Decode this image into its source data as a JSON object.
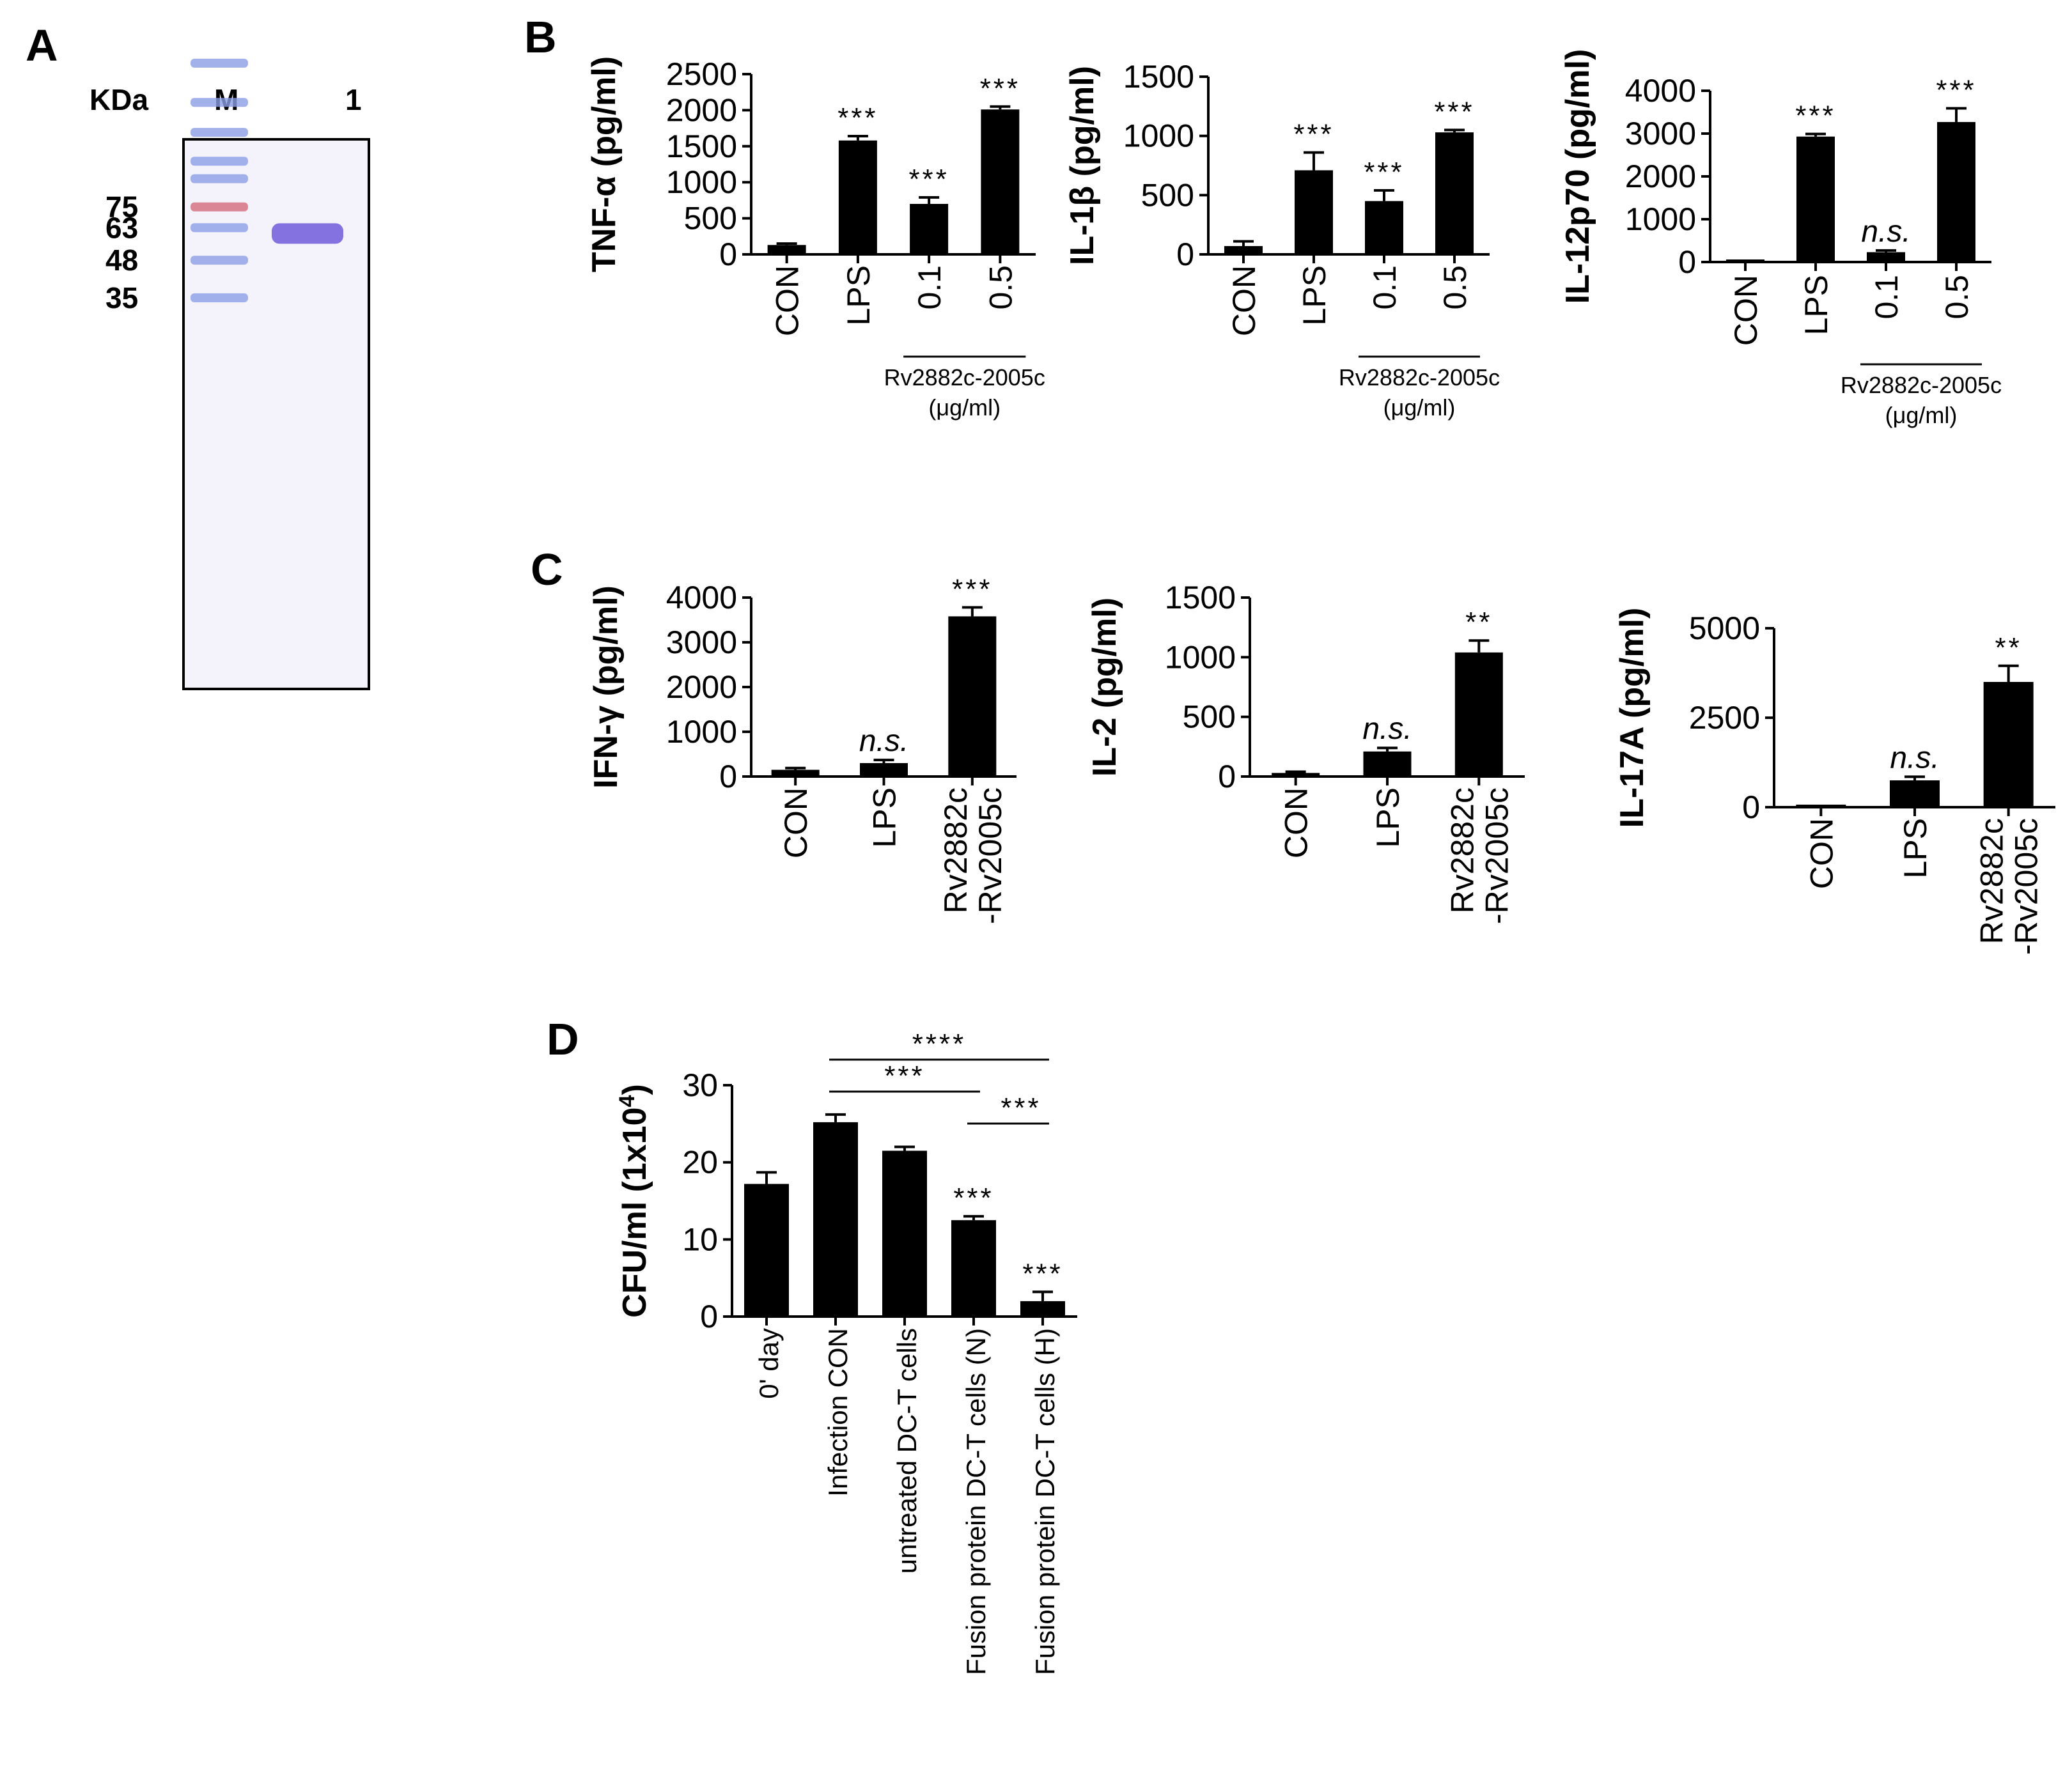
{
  "colors": {
    "bar": "#000000",
    "gel_background": "#f4f3fb",
    "gel_border": "#000000",
    "ladder_band": "#8c9ee6",
    "ladder_band_red": "#d46a7a",
    "protein_band": "#6e5ad9"
  },
  "panel_a": {
    "letter": "A",
    "kda_label": "KDa",
    "lane_m": "M",
    "lane_1": "1",
    "markers": [
      {
        "label": "75",
        "kda": 75
      },
      {
        "label": "63",
        "kda": 63
      },
      {
        "label": "48",
        "kda": 48
      },
      {
        "label": "35",
        "kda": 35
      }
    ],
    "protein_band_kda": 60
  },
  "panel_b": {
    "letter": "B"
  },
  "panel_c": {
    "letter": "C"
  },
  "panel_d": {
    "letter": "D"
  },
  "chart_data": [
    {
      "id": "b1",
      "panel": "B",
      "type": "bar",
      "ylabel": "TNF-α (pg/ml)",
      "categories": [
        "CON",
        "LPS",
        "0.1",
        "0.5"
      ],
      "values": [
        130,
        1580,
        700,
        2010
      ],
      "errors": [
        20,
        60,
        90,
        40
      ],
      "ylim": [
        0,
        2500
      ],
      "yticks": [
        "0",
        "500",
        "1000",
        "1500",
        "2000",
        "2500"
      ],
      "annotations": [
        "",
        "***",
        "***",
        "***"
      ],
      "group_label": "Rv2882c-2005c",
      "group_unit": "(μg/ml)"
    },
    {
      "id": "b2",
      "panel": "B",
      "type": "bar",
      "ylabel": "IL-1β (pg/ml)",
      "categories": [
        "CON",
        "LPS",
        "0.1",
        "0.5"
      ],
      "values": [
        70,
        710,
        450,
        1030
      ],
      "errors": [
        40,
        150,
        90,
        20
      ],
      "ylim": [
        0,
        1500
      ],
      "yticks": [
        "0",
        "500",
        "1000",
        "1500"
      ],
      "annotations": [
        "",
        "***",
        "***",
        "***"
      ],
      "group_label": "Rv2882c-2005c",
      "group_unit": "(μg/ml)"
    },
    {
      "id": "b3",
      "panel": "B",
      "type": "bar",
      "ylabel": "IL-12p70 (pg/ml)",
      "categories": [
        "CON",
        "LPS",
        "0.1",
        "0.5"
      ],
      "values": [
        0,
        2930,
        230,
        3270
      ],
      "errors": [
        0,
        60,
        40,
        320
      ],
      "ylim": [
        0,
        4000
      ],
      "yticks": [
        "0",
        "1000",
        "2000",
        "3000",
        "4000"
      ],
      "annotations": [
        "",
        "***",
        "n.s.",
        "***"
      ],
      "group_label": "Rv2882c-2005c",
      "group_unit": "(μg/ml)"
    },
    {
      "id": "c1",
      "panel": "C",
      "type": "bar",
      "ylabel": "IFN-γ (pg/ml)",
      "categories": [
        "CON",
        "LPS",
        "Rv2882c|-Rv2005c"
      ],
      "values": [
        150,
        300,
        3580
      ],
      "errors": [
        40,
        70,
        200
      ],
      "ylim": [
        0,
        4000
      ],
      "yticks": [
        "0",
        "1000",
        "2000",
        "3000",
        "4000"
      ],
      "annotations": [
        "",
        "n.s.",
        "***"
      ]
    },
    {
      "id": "c2",
      "panel": "C",
      "type": "bar",
      "ylabel": "IL-2 (pg/ml)",
      "categories": [
        "CON",
        "LPS",
        "Rv2882c|-Rv2005c"
      ],
      "values": [
        30,
        210,
        1040
      ],
      "errors": [
        10,
        30,
        100
      ],
      "ylim": [
        0,
        1500
      ],
      "yticks": [
        "0",
        "500",
        "1000",
        "1500"
      ],
      "annotations": [
        "",
        "n.s.",
        "**"
      ]
    },
    {
      "id": "c3",
      "panel": "C",
      "type": "bar",
      "ylabel": "IL-17A (pg/ml)",
      "categories": [
        "CON",
        "LPS",
        "Rv2882c|-Rv2005c"
      ],
      "values": [
        0,
        750,
        3500
      ],
      "errors": [
        0,
        100,
        450
      ],
      "ylim": [
        0,
        5000
      ],
      "yticks": [
        "0",
        "2500",
        "5000"
      ],
      "annotations": [
        "",
        "n.s.",
        "**"
      ]
    },
    {
      "id": "d1",
      "panel": "D",
      "type": "bar",
      "ylabel": "CFU/ml (1x10",
      "ylabel_sup": "4",
      "ylabel_end": ")",
      "categories": [
        "0' day",
        "Infection CON",
        "untreated DC-T cells",
        "Fusion protein DC-T cells (N)",
        "Fusion protein DC-T cells (H)"
      ],
      "values": [
        17.2,
        25.2,
        21.5,
        12.5,
        2.0
      ],
      "errors": [
        1.5,
        1.0,
        0.5,
        0.5,
        1.2
      ],
      "ylim": [
        0,
        30
      ],
      "yticks": [
        "0",
        "10",
        "20",
        "30"
      ],
      "annotations": [
        "",
        "",
        "",
        "***",
        "***"
      ],
      "brackets": [
        {
          "from": 1,
          "to": 4,
          "label": "****"
        },
        {
          "from": 1,
          "to": 3,
          "label": "***"
        },
        {
          "from": 3,
          "to": 4,
          "label": "***"
        }
      ]
    }
  ]
}
